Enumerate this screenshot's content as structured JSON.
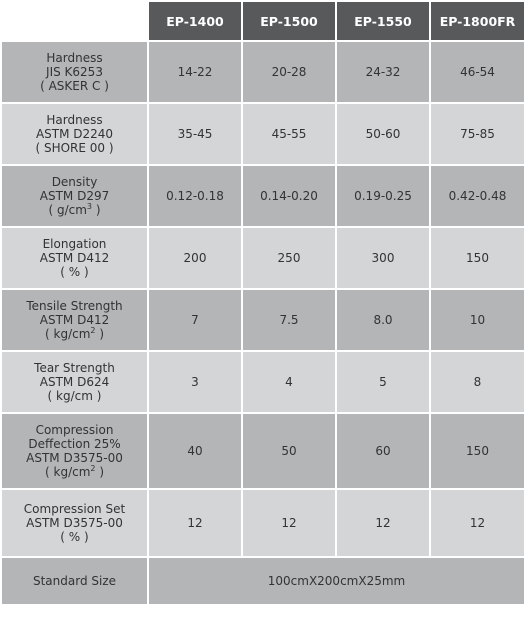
{
  "models": [
    "EP-1400",
    "EP-1500",
    "EP-1550",
    "EP-1800FR"
  ],
  "rows": [
    {
      "label": [
        [
          "Hardness",
          ""
        ],
        [
          "JIS K6253",
          ""
        ],
        [
          "( ASKER C )",
          ""
        ]
      ],
      "values": [
        "14-22",
        "20-28",
        "24-32",
        "46-54"
      ]
    },
    {
      "label": [
        [
          "Hardness",
          ""
        ],
        [
          "ASTM D2240",
          ""
        ],
        [
          "( SHORE 00 )",
          ""
        ]
      ],
      "values": [
        "35-45",
        "45-55",
        "50-60",
        "75-85"
      ]
    },
    {
      "label": [
        [
          "Density",
          ""
        ],
        [
          "ASTM D297",
          ""
        ],
        [
          "( g/cm",
          "3",
          " )"
        ]
      ],
      "values": [
        "0.12-0.18",
        "0.14-0.20",
        "0.19-0.25",
        "0.42-0.48"
      ]
    },
    {
      "label": [
        [
          "Elongation",
          ""
        ],
        [
          "ASTM D412",
          ""
        ],
        [
          "( % )",
          ""
        ]
      ],
      "values": [
        "200",
        "250",
        "300",
        "150"
      ]
    },
    {
      "label": [
        [
          "Tensile Strength",
          ""
        ],
        [
          "ASTM D412",
          ""
        ],
        [
          "( kg/cm",
          "2",
          " )"
        ]
      ],
      "values": [
        "7",
        "7.5",
        "8.0",
        "10"
      ]
    },
    {
      "label": [
        [
          "Tear Strength",
          ""
        ],
        [
          "ASTM D624",
          ""
        ],
        [
          "( kg/cm )",
          ""
        ]
      ],
      "values": [
        "3",
        "4",
        "5",
        "8"
      ]
    },
    {
      "label": [
        [
          "Compression",
          ""
        ],
        [
          "Deffection 25%",
          ""
        ],
        [
          "ASTM D3575-00",
          ""
        ],
        [
          "( kg/cm",
          "2",
          " )"
        ]
      ],
      "values": [
        "40",
        "50",
        "60",
        "150"
      ]
    },
    {
      "label": [
        [
          "Compression Set",
          ""
        ],
        [
          "ASTM D3575-00",
          ""
        ],
        [
          "( % )",
          ""
        ]
      ],
      "values": [
        "12",
        "12",
        "12",
        "12"
      ]
    }
  ],
  "standard_size": {
    "label": "Standard Size",
    "value": "100cmX200cmX25mm"
  },
  "colors": {
    "header_bg": "#58595b",
    "row_dark": "#b3b5b6",
    "row_light": "#d3d5d6",
    "text": "#333333"
  }
}
